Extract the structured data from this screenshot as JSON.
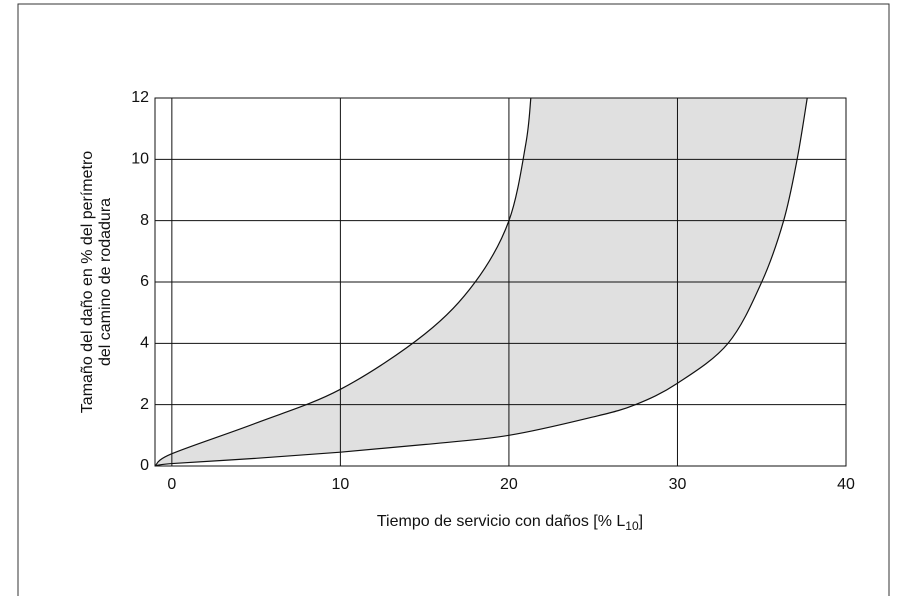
{
  "chart_data": {
    "type": "band",
    "xlabel_parts": [
      "Tiempo de servicio con daños [% L",
      "10",
      "]"
    ],
    "ylabel_lines": [
      "Tamaño del daño en % del perímetro",
      "del camino de rodadura"
    ],
    "xlim": [
      -1,
      40
    ],
    "ylim": [
      0,
      12
    ],
    "xticks": [
      0,
      10,
      20,
      30,
      40
    ],
    "yticks": [
      0,
      2,
      4,
      6,
      8,
      10,
      12
    ],
    "grid": true,
    "fill_color": "#e0e0e0",
    "line_color": "#111111",
    "series": [
      {
        "x": [
          -1,
          0,
          5,
          10,
          15,
          18,
          20,
          21,
          21.3
        ],
        "values": [
          0,
          0.4,
          1.4,
          2.5,
          4.3,
          6,
          8,
          10.5,
          12
        ]
      },
      {
        "x": [
          -1,
          0,
          5,
          10,
          15,
          20,
          25,
          27.5,
          30,
          33,
          35,
          36.3,
          37.1,
          37.7
        ],
        "values": [
          0,
          0.08,
          0.25,
          0.45,
          0.7,
          1.0,
          1.6,
          2.0,
          2.7,
          4,
          6,
          8,
          10,
          12
        ]
      }
    ]
  }
}
